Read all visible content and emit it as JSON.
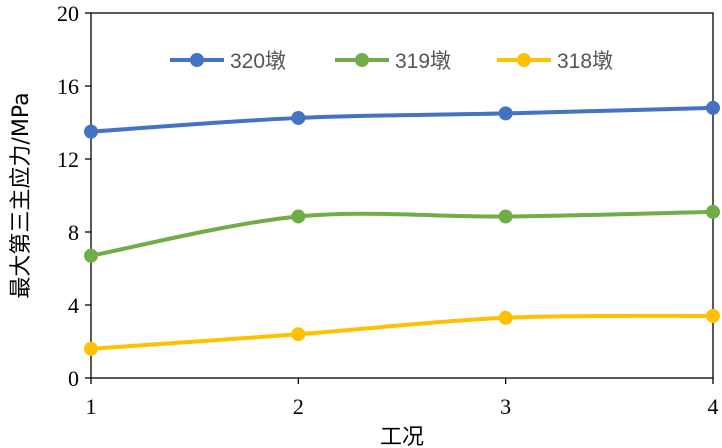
{
  "chart_data": {
    "type": "line",
    "title": "",
    "xlabel": "工况",
    "ylabel": "最大第三主应力/MPa",
    "x": [
      1,
      2,
      3,
      4
    ],
    "xlim": [
      1,
      4
    ],
    "ylim": [
      0,
      20
    ],
    "y_ticks": [
      0,
      4,
      8,
      12,
      16,
      20
    ],
    "x_ticks": [
      1,
      2,
      3,
      4
    ],
    "grid": false,
    "legend_position": "top",
    "smooth": true,
    "series": [
      {
        "name": "320墩",
        "color": "#4472C4",
        "values": [
          13.5,
          14.25,
          14.5,
          14.8
        ]
      },
      {
        "name": "319墩",
        "color": "#70AD47",
        "values": [
          6.7,
          8.85,
          8.85,
          9.1
        ]
      },
      {
        "name": "318墩",
        "color": "#FFC000",
        "values": [
          1.6,
          2.4,
          3.3,
          3.4
        ]
      }
    ]
  }
}
